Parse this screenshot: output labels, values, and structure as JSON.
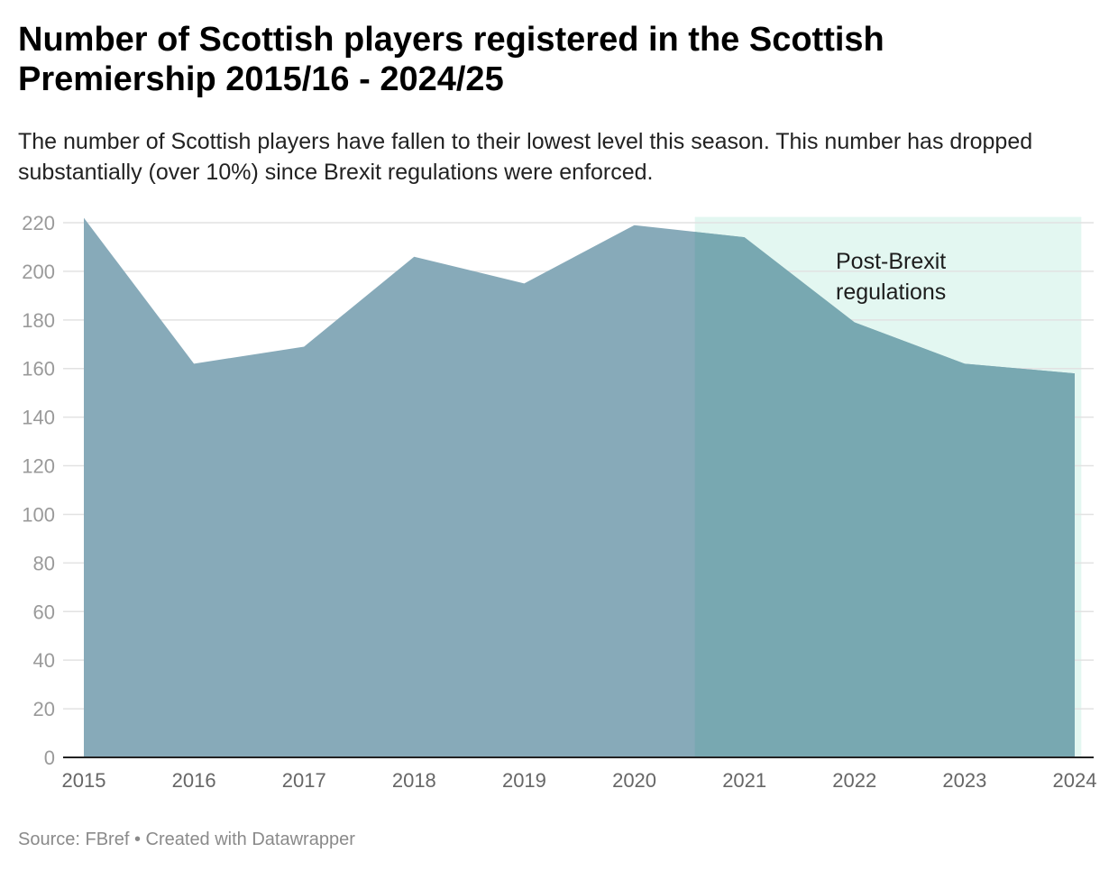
{
  "title": "Number of Scottish players registered in the Scottish Premiership 2015/16 - 2024/25",
  "subtitle": "The number of Scottish players have fallen to their lowest level this season. This number has dropped substantially (over 10%) since Brexit regulations were enforced.",
  "footer": {
    "source_label": "Source: FBref",
    "separator": "•",
    "credit": "Created with Datawrapper"
  },
  "chart_data": {
    "type": "area",
    "title": "Number of Scottish players registered in the Scottish Premiership 2015/16 - 2024/25",
    "xlabel": "",
    "ylabel": "",
    "x": [
      "2015",
      "2016",
      "2017",
      "2018",
      "2019",
      "2020",
      "2021",
      "2022",
      "2023",
      "2024"
    ],
    "series": [
      {
        "name": "Scottish players",
        "values": [
          222,
          162,
          169,
          206,
          195,
          219,
          214,
          179,
          162,
          158
        ],
        "color": "#87aab9"
      }
    ],
    "ylim": [
      0,
      220
    ],
    "yticks": [
      0,
      20,
      40,
      60,
      80,
      100,
      120,
      140,
      160,
      180,
      200,
      220
    ],
    "grid": true,
    "legend": "none",
    "highlight_range": {
      "label_line1": "Post-Brexit",
      "label_line2": "regulations",
      "x_start": 2020.55,
      "x_end": 2024.06,
      "shade_color": "#e3f7f1",
      "overlay_color": "#78a8b1"
    }
  }
}
